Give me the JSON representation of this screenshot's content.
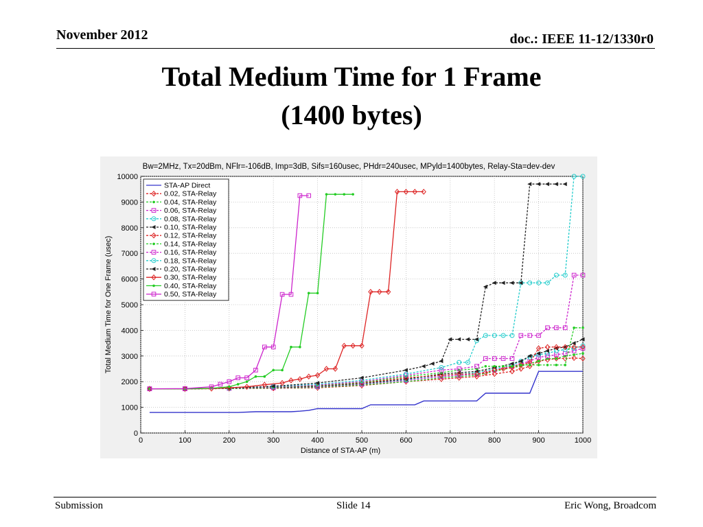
{
  "header": {
    "date": "November 2012",
    "doc": "doc.: IEEE 11-12/1330r0"
  },
  "slide_title": {
    "line1": "Total Medium Time for 1 Frame",
    "line2": "(1400 bytes)"
  },
  "footer": {
    "left": "Submission",
    "center": "Slide 14",
    "right": "Eric Wong, Broadcom"
  },
  "chart_data": {
    "type": "line",
    "title": "Bw=2MHz, Tx=20dBm, NFlr=-106dB, Imp=3dB, Sifs=160usec, PHdr=240usec, MPyld=1400bytes, Relay-Sta=dev-dev",
    "xlabel": "Distance of STA-AP (m)",
    "ylabel": "Total Medium Time for One Frame (usec)",
    "xlim": [
      0,
      1000
    ],
    "ylim": [
      0,
      10000
    ],
    "xticks": [
      0,
      100,
      200,
      300,
      400,
      500,
      600,
      700,
      800,
      900,
      1000
    ],
    "yticks": [
      0,
      1000,
      2000,
      3000,
      4000,
      5000,
      6000,
      7000,
      8000,
      9000,
      10000
    ],
    "grid": true,
    "legend_position": "top-left",
    "series": [
      {
        "name": "STA-AP Direct",
        "color": "#3333cc",
        "marker": "none",
        "x": [
          20,
          220,
          260,
          300,
          340,
          360,
          380,
          400,
          420,
          440,
          460,
          480,
          500,
          520,
          540,
          560,
          580,
          600,
          620,
          640,
          660,
          680,
          700,
          720,
          740,
          760,
          780,
          800,
          820,
          840,
          860,
          880,
          900,
          920,
          940,
          960,
          980,
          1000
        ],
        "y": [
          800,
          800,
          830,
          830,
          830,
          850,
          880,
          950,
          950,
          950,
          950,
          950,
          950,
          1100,
          1100,
          1100,
          1100,
          1100,
          1100,
          1250,
          1250,
          1250,
          1250,
          1250,
          1250,
          1250,
          1550,
          1550,
          1550,
          1550,
          1550,
          1550,
          2400,
          2400,
          2400,
          2400,
          2400,
          2400
        ]
      },
      {
        "name": "0.02, STA-Relay",
        "color": "#dd2222",
        "marker": "diamond",
        "x": [
          20,
          100,
          200,
          300,
          400,
          500,
          600,
          680,
          720,
          760,
          800,
          840,
          860,
          880,
          900,
          920,
          940,
          960,
          980,
          1000
        ],
        "y": [
          1720,
          1720,
          1730,
          1740,
          1760,
          1850,
          2000,
          2100,
          2150,
          2200,
          2300,
          2400,
          2500,
          2600,
          2800,
          2850,
          2900,
          2900,
          2920,
          2900
        ]
      },
      {
        "name": "0.04, STA-Relay",
        "color": "#22cc22",
        "marker": "dot",
        "x": [
          20,
          100,
          200,
          300,
          400,
          500,
          600,
          680,
          720,
          760,
          800,
          840,
          860,
          880,
          900,
          920,
          940,
          960,
          980,
          1000
        ],
        "y": [
          1720,
          1720,
          1730,
          1750,
          1780,
          1870,
          2000,
          2150,
          2200,
          2250,
          2400,
          2550,
          2600,
          2700,
          2800,
          2900,
          2900,
          3000,
          3050,
          3100
        ]
      },
      {
        "name": "0.06, STA-Relay",
        "color": "#cc22cc",
        "marker": "square",
        "x": [
          20,
          100,
          200,
          300,
          400,
          500,
          600,
          680,
          720,
          760,
          800,
          840,
          860,
          880,
          900,
          920,
          940,
          960,
          980,
          1000
        ],
        "y": [
          1720,
          1720,
          1740,
          1760,
          1800,
          1900,
          2050,
          2200,
          2250,
          2300,
          2450,
          2600,
          2700,
          2800,
          2950,
          3000,
          3050,
          3100,
          3200,
          3300
        ]
      },
      {
        "name": "0.08, STA-Relay",
        "color": "#22cccc",
        "marker": "circle",
        "x": [
          20,
          100,
          200,
          300,
          400,
          500,
          600,
          680,
          720,
          760,
          800,
          840,
          860,
          880,
          900,
          920,
          940,
          960,
          980,
          1000
        ],
        "y": [
          1720,
          1720,
          1740,
          1770,
          1810,
          1920,
          2080,
          2250,
          2300,
          2350,
          2500,
          2650,
          2800,
          2950,
          3050,
          3100,
          3200,
          3250,
          3300,
          3400
        ]
      },
      {
        "name": "0.10, STA-Relay",
        "color": "#222222",
        "marker": "triangle",
        "x": [
          20,
          100,
          200,
          300,
          400,
          500,
          600,
          680,
          720,
          760,
          800,
          840,
          860,
          880,
          900,
          920,
          940,
          960,
          980,
          1000
        ],
        "y": [
          1720,
          1720,
          1740,
          1770,
          1820,
          1930,
          2100,
          2300,
          2350,
          2400,
          2550,
          2700,
          2800,
          3000,
          3100,
          3200,
          3300,
          3350,
          3500,
          3650
        ]
      },
      {
        "name": "0.12, STA-Relay",
        "color": "#dd2222",
        "marker": "diamond",
        "x": [
          20,
          100,
          200,
          300,
          400,
          500,
          600,
          680,
          720,
          760,
          780,
          800,
          820,
          840,
          860,
          880,
          900,
          920,
          940,
          960,
          980,
          1000
        ],
        "y": [
          1720,
          1720,
          1740,
          1780,
          1840,
          1950,
          2150,
          2250,
          2300,
          2300,
          2350,
          2450,
          2500,
          2550,
          2650,
          2750,
          3300,
          3350,
          3350,
          3350,
          3350,
          3350
        ]
      },
      {
        "name": "0.14, STA-Relay",
        "color": "#22cc22",
        "marker": "dot",
        "x": [
          20,
          100,
          200,
          300,
          400,
          500,
          600,
          680,
          720,
          760,
          780,
          800,
          820,
          840,
          860,
          880,
          900,
          920,
          940,
          960,
          980,
          1000
        ],
        "y": [
          1720,
          1720,
          1740,
          1790,
          1850,
          1970,
          2200,
          2350,
          2450,
          2500,
          2600,
          2600,
          2600,
          2600,
          2650,
          2650,
          2650,
          2650,
          2650,
          2650,
          4100,
          4100
        ]
      },
      {
        "name": "0.16, STA-Relay",
        "color": "#cc22cc",
        "marker": "square",
        "x": [
          20,
          100,
          200,
          300,
          400,
          500,
          600,
          680,
          720,
          760,
          780,
          800,
          820,
          840,
          860,
          880,
          900,
          920,
          940,
          960,
          980,
          1000
        ],
        "y": [
          1720,
          1720,
          1740,
          1800,
          1870,
          2000,
          2250,
          2450,
          2500,
          2600,
          2900,
          2900,
          2900,
          2900,
          3800,
          3800,
          3800,
          4100,
          4100,
          4100,
          6150,
          6150
        ]
      },
      {
        "name": "0.18, STA-Relay",
        "color": "#22cccc",
        "marker": "circle",
        "x": [
          20,
          100,
          200,
          300,
          400,
          500,
          600,
          680,
          720,
          740,
          760,
          780,
          800,
          820,
          840,
          860,
          880,
          900,
          920,
          940,
          960,
          980,
          1000
        ],
        "y": [
          1720,
          1720,
          1740,
          1810,
          1900,
          2050,
          2300,
          2550,
          2750,
          2750,
          3600,
          3800,
          3800,
          3800,
          3800,
          5850,
          5850,
          5850,
          5850,
          6150,
          6150,
          10000,
          10000
        ]
      },
      {
        "name": "0.20, STA-Relay",
        "color": "#222222",
        "marker": "triangle",
        "x": [
          20,
          100,
          200,
          300,
          400,
          500,
          600,
          640,
          660,
          680,
          700,
          720,
          740,
          760,
          780,
          800,
          820,
          840,
          860,
          880,
          900,
          920,
          940,
          960
        ],
        "y": [
          1720,
          1720,
          1750,
          1820,
          1950,
          2150,
          2450,
          2600,
          2700,
          2800,
          3650,
          3650,
          3650,
          3650,
          5700,
          5850,
          5850,
          5850,
          5850,
          9700,
          9700,
          9700,
          9700,
          9700
        ]
      },
      {
        "name": "0.30, STA-Relay",
        "color": "#dd2222",
        "marker": "diamond",
        "x": [
          20,
          100,
          160,
          200,
          240,
          280,
          320,
          340,
          360,
          380,
          400,
          420,
          440,
          460,
          480,
          500,
          520,
          540,
          560,
          580,
          600,
          620,
          640
        ],
        "y": [
          1720,
          1720,
          1730,
          1760,
          1800,
          1880,
          1950,
          2050,
          2100,
          2200,
          2250,
          2500,
          2500,
          3400,
          3400,
          3400,
          5500,
          5500,
          5500,
          9400,
          9400,
          9400,
          9400
        ]
      },
      {
        "name": "0.40, STA-Relay",
        "color": "#22cc22",
        "marker": "dot",
        "x": [
          20,
          100,
          160,
          200,
          220,
          240,
          260,
          280,
          300,
          320,
          340,
          360,
          380,
          400,
          420,
          440,
          460,
          480
        ],
        "y": [
          1720,
          1720,
          1740,
          1800,
          1900,
          2000,
          2200,
          2200,
          2450,
          2450,
          3350,
          3350,
          5450,
          5450,
          9300,
          9300,
          9300,
          9300
        ]
      },
      {
        "name": "0.50, STA-Relay",
        "color": "#cc22cc",
        "marker": "square",
        "x": [
          20,
          100,
          160,
          180,
          200,
          220,
          240,
          260,
          280,
          300,
          320,
          340,
          360,
          380
        ],
        "y": [
          1720,
          1730,
          1800,
          1900,
          2000,
          2150,
          2150,
          2450,
          3350,
          3350,
          5400,
          5400,
          9250,
          9250
        ]
      }
    ]
  }
}
